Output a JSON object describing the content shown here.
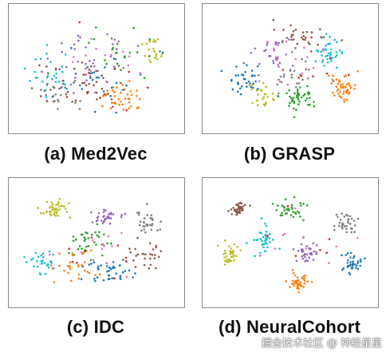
{
  "chart_data": [
    {
      "type": "scatter",
      "caption": "(a) Med2Vec",
      "xlabel": "",
      "ylabel": "",
      "grid": false,
      "clusters": [
        {
          "color": "#17becf",
          "n": 30,
          "cx": 0.22,
          "cy": 0.55,
          "sx": 0.13,
          "sy": 0.16
        },
        {
          "color": "#ff7f0e",
          "n": 40,
          "cx": 0.66,
          "cy": 0.74,
          "sx": 0.1,
          "sy": 0.11
        },
        {
          "color": "#9467bd",
          "n": 35,
          "cx": 0.45,
          "cy": 0.38,
          "sx": 0.24,
          "sy": 0.22
        },
        {
          "color": "#8c564b",
          "n": 35,
          "cx": 0.4,
          "cy": 0.65,
          "sx": 0.22,
          "sy": 0.2
        },
        {
          "color": "#bcbd22",
          "n": 22,
          "cx": 0.86,
          "cy": 0.36,
          "sx": 0.06,
          "sy": 0.14
        },
        {
          "color": "#2ca02c",
          "n": 25,
          "cx": 0.62,
          "cy": 0.4,
          "sx": 0.2,
          "sy": 0.2
        },
        {
          "color": "#1f77b4",
          "n": 28,
          "cx": 0.5,
          "cy": 0.6,
          "sx": 0.25,
          "sy": 0.2
        },
        {
          "color": "#7f7f7f",
          "n": 25,
          "cx": 0.25,
          "cy": 0.72,
          "sx": 0.12,
          "sy": 0.12
        },
        {
          "color": "#e377c2",
          "n": 15,
          "cx": 0.55,
          "cy": 0.5,
          "sx": 0.22,
          "sy": 0.2
        },
        {
          "color": "#d62728",
          "n": 10,
          "cx": 0.55,
          "cy": 0.55,
          "sx": 0.25,
          "sy": 0.22
        }
      ]
    },
    {
      "type": "scatter",
      "caption": "(b) GRASP",
      "xlabel": "",
      "ylabel": "",
      "grid": false,
      "clusters": [
        {
          "color": "#17becf",
          "n": 40,
          "cx": 0.74,
          "cy": 0.36,
          "sx": 0.08,
          "sy": 0.1
        },
        {
          "color": "#ff7f0e",
          "n": 50,
          "cx": 0.82,
          "cy": 0.66,
          "sx": 0.07,
          "sy": 0.09
        },
        {
          "color": "#2ca02c",
          "n": 45,
          "cx": 0.55,
          "cy": 0.74,
          "sx": 0.1,
          "sy": 0.09
        },
        {
          "color": "#1f77b4",
          "n": 35,
          "cx": 0.22,
          "cy": 0.58,
          "sx": 0.09,
          "sy": 0.11
        },
        {
          "color": "#8c564b",
          "n": 30,
          "cx": 0.6,
          "cy": 0.22,
          "sx": 0.15,
          "sy": 0.09
        },
        {
          "color": "#9467bd",
          "n": 30,
          "cx": 0.42,
          "cy": 0.38,
          "sx": 0.12,
          "sy": 0.12
        },
        {
          "color": "#bcbd22",
          "n": 25,
          "cx": 0.33,
          "cy": 0.74,
          "sx": 0.08,
          "sy": 0.08
        },
        {
          "color": "#7f7f7f",
          "n": 25,
          "cx": 0.5,
          "cy": 0.55,
          "sx": 0.14,
          "sy": 0.12
        },
        {
          "color": "#e377c2",
          "n": 15,
          "cx": 0.5,
          "cy": 0.45,
          "sx": 0.2,
          "sy": 0.18
        },
        {
          "color": "#d62728",
          "n": 8,
          "cx": 0.55,
          "cy": 0.5,
          "sx": 0.22,
          "sy": 0.2
        }
      ]
    },
    {
      "type": "scatter",
      "caption": "(c) IDC",
      "xlabel": "",
      "ylabel": "",
      "grid": false,
      "clusters": [
        {
          "color": "#bcbd22",
          "n": 40,
          "cx": 0.24,
          "cy": 0.2,
          "sx": 0.08,
          "sy": 0.07
        },
        {
          "color": "#9467bd",
          "n": 35,
          "cx": 0.56,
          "cy": 0.28,
          "sx": 0.09,
          "sy": 0.07
        },
        {
          "color": "#7f7f7f",
          "n": 30,
          "cx": 0.82,
          "cy": 0.34,
          "sx": 0.08,
          "sy": 0.1
        },
        {
          "color": "#17becf",
          "n": 30,
          "cx": 0.16,
          "cy": 0.66,
          "sx": 0.08,
          "sy": 0.1
        },
        {
          "color": "#1f77b4",
          "n": 40,
          "cx": 0.58,
          "cy": 0.76,
          "sx": 0.11,
          "sy": 0.08
        },
        {
          "color": "#2ca02c",
          "n": 35,
          "cx": 0.42,
          "cy": 0.48,
          "sx": 0.12,
          "sy": 0.12
        },
        {
          "color": "#ff7f0e",
          "n": 30,
          "cx": 0.36,
          "cy": 0.7,
          "sx": 0.12,
          "sy": 0.12
        },
        {
          "color": "#8c564b",
          "n": 30,
          "cx": 0.78,
          "cy": 0.62,
          "sx": 0.1,
          "sy": 0.12
        },
        {
          "color": "#e377c2",
          "n": 15,
          "cx": 0.5,
          "cy": 0.55,
          "sx": 0.22,
          "sy": 0.2
        },
        {
          "color": "#d62728",
          "n": 8,
          "cx": 0.5,
          "cy": 0.55,
          "sx": 0.22,
          "sy": 0.2
        }
      ]
    },
    {
      "type": "scatter",
      "caption": "(d) NeuralCohort",
      "xlabel": "",
      "ylabel": "",
      "grid": false,
      "clusters": [
        {
          "color": "#8c564b",
          "n": 40,
          "cx": 0.14,
          "cy": 0.16,
          "sx": 0.05,
          "sy": 0.06
        },
        {
          "color": "#2ca02c",
          "n": 35,
          "cx": 0.5,
          "cy": 0.22,
          "sx": 0.08,
          "sy": 0.07
        },
        {
          "color": "#7f7f7f",
          "n": 35,
          "cx": 0.84,
          "cy": 0.34,
          "sx": 0.06,
          "sy": 0.07
        },
        {
          "color": "#17becf",
          "n": 40,
          "cx": 0.34,
          "cy": 0.48,
          "sx": 0.06,
          "sy": 0.1
        },
        {
          "color": "#9467bd",
          "n": 35,
          "cx": 0.6,
          "cy": 0.58,
          "sx": 0.06,
          "sy": 0.08
        },
        {
          "color": "#bcbd22",
          "n": 35,
          "cx": 0.14,
          "cy": 0.6,
          "sx": 0.05,
          "sy": 0.07
        },
        {
          "color": "#1f77b4",
          "n": 35,
          "cx": 0.88,
          "cy": 0.68,
          "sx": 0.05,
          "sy": 0.07
        },
        {
          "color": "#ff7f0e",
          "n": 40,
          "cx": 0.56,
          "cy": 0.84,
          "sx": 0.06,
          "sy": 0.06
        },
        {
          "color": "#e377c2",
          "n": 10,
          "cx": 0.5,
          "cy": 0.5,
          "sx": 0.25,
          "sy": 0.22
        },
        {
          "color": "#d62728",
          "n": 6,
          "cx": 0.5,
          "cy": 0.5,
          "sx": 0.25,
          "sy": 0.22
        }
      ]
    }
  ],
  "watermark": "掘金技术社区 @ 神经星星"
}
